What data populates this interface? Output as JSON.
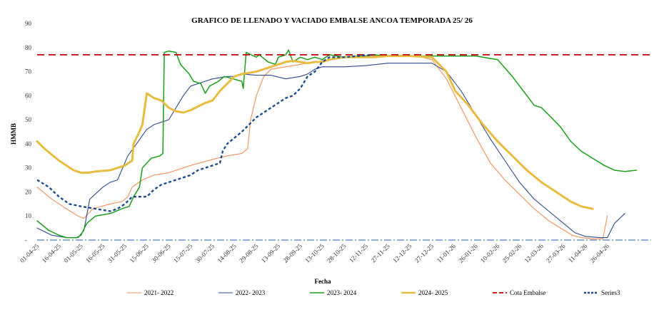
{
  "chart_data": {
    "type": "line",
    "title": "GRAFICO DE LLENADO Y VACIADO EMBALSE ANCOA TEMPORADA 25/ 26",
    "xlabel": "Fecha",
    "ylabel": "HMMB",
    "ylim": [
      0,
      90
    ],
    "yticks": [
      10,
      20,
      30,
      40,
      50,
      60,
      70,
      80,
      90
    ],
    "yzero_label": "-",
    "grid": false,
    "legend_position": "bottom",
    "x_categories": [
      "01-04-25",
      "16-04-25",
      "01-05-25",
      "16-05-25",
      "31-05-25",
      "15-06-25",
      "30-06-25",
      "15-07-25",
      "30-07-25",
      "14-08-25",
      "29-08-25",
      "13-09-25",
      "28-09-25",
      "13-10-25",
      "28-10-25",
      "12-11-25",
      "27-11-25",
      "12-12-25",
      "27-12-25",
      "11-01-26",
      "26-01-26",
      "10-02-26",
      "25-02-26",
      "12-03-26",
      "27-03-26",
      "11-04-26",
      "26-04-26"
    ],
    "x_day_offsets": [
      0,
      15,
      30,
      45,
      60,
      75,
      90,
      105,
      120,
      135,
      150,
      165,
      180,
      195,
      210,
      225,
      240,
      255,
      270,
      285,
      300,
      315,
      330,
      345,
      360,
      375,
      390
    ],
    "x_max_day": 420,
    "series": [
      {
        "name": "2021- 2022",
        "color": "#f0905a",
        "width": 1.1,
        "dash": "",
        "points": [
          [
            0,
            22
          ],
          [
            10,
            17
          ],
          [
            20,
            13
          ],
          [
            28,
            10
          ],
          [
            32,
            9
          ],
          [
            38,
            13
          ],
          [
            50,
            15
          ],
          [
            58,
            16
          ],
          [
            62,
            18
          ],
          [
            65,
            22
          ],
          [
            72,
            25
          ],
          [
            80,
            27
          ],
          [
            90,
            28
          ],
          [
            105,
            31
          ],
          [
            120,
            33.5
          ],
          [
            130,
            35
          ],
          [
            140,
            36
          ],
          [
            144,
            38
          ],
          [
            146,
            50
          ],
          [
            150,
            60
          ],
          [
            155,
            68
          ],
          [
            160,
            71
          ],
          [
            170,
            72
          ],
          [
            180,
            73
          ],
          [
            190,
            74
          ],
          [
            200,
            75
          ],
          [
            210,
            76
          ],
          [
            220,
            76
          ],
          [
            230,
            76.5
          ],
          [
            240,
            76.5
          ],
          [
            250,
            76.5
          ],
          [
            260,
            76.5
          ],
          [
            270,
            75
          ],
          [
            280,
            67
          ],
          [
            290,
            55
          ],
          [
            300,
            43
          ],
          [
            310,
            32
          ],
          [
            320,
            25
          ],
          [
            330,
            19
          ],
          [
            340,
            13
          ],
          [
            350,
            8
          ],
          [
            358,
            5
          ],
          [
            366,
            2
          ],
          [
            372,
            1
          ],
          [
            380,
            0.5
          ],
          [
            387,
            0.5
          ],
          [
            390,
            10
          ]
        ]
      },
      {
        "name": "2022- 2023",
        "color": "#2e4a8b",
        "width": 1.1,
        "dash": "",
        "points": [
          [
            0,
            5
          ],
          [
            10,
            2
          ],
          [
            20,
            1
          ],
          [
            28,
            1
          ],
          [
            32,
            4
          ],
          [
            36,
            17
          ],
          [
            45,
            22
          ],
          [
            50,
            24
          ],
          [
            55,
            25
          ],
          [
            62,
            35
          ],
          [
            68,
            40
          ],
          [
            75,
            46
          ],
          [
            80,
            48
          ],
          [
            90,
            50
          ],
          [
            100,
            60
          ],
          [
            105,
            64
          ],
          [
            115,
            66
          ],
          [
            120,
            67
          ],
          [
            130,
            68
          ],
          [
            135,
            68
          ],
          [
            140,
            69
          ],
          [
            150,
            68.5
          ],
          [
            160,
            68.5
          ],
          [
            170,
            67
          ],
          [
            180,
            68
          ],
          [
            185,
            69
          ],
          [
            190,
            71
          ],
          [
            195,
            72
          ],
          [
            210,
            72
          ],
          [
            225,
            72.5
          ],
          [
            240,
            73.5
          ],
          [
            255,
            73.5
          ],
          [
            270,
            73.5
          ],
          [
            280,
            70
          ],
          [
            290,
            62
          ],
          [
            300,
            52
          ],
          [
            310,
            42
          ],
          [
            320,
            33
          ],
          [
            330,
            24
          ],
          [
            340,
            17
          ],
          [
            350,
            12
          ],
          [
            360,
            7
          ],
          [
            368,
            3
          ],
          [
            375,
            1.5
          ],
          [
            385,
            1
          ],
          [
            390,
            1
          ],
          [
            395,
            7
          ],
          [
            402,
            11
          ]
        ]
      },
      {
        "name": "2023- 2024",
        "color": "#1a9e1a",
        "width": 1.5,
        "dash": "",
        "points": [
          [
            0,
            8
          ],
          [
            8,
            4
          ],
          [
            15,
            2
          ],
          [
            20,
            1
          ],
          [
            27,
            1
          ],
          [
            30,
            2
          ],
          [
            34,
            7
          ],
          [
            40,
            10
          ],
          [
            50,
            11
          ],
          [
            58,
            13
          ],
          [
            63,
            14
          ],
          [
            66,
            18
          ],
          [
            70,
            22
          ],
          [
            72,
            30
          ],
          [
            78,
            34
          ],
          [
            84,
            35
          ],
          [
            86,
            36
          ],
          [
            87,
            78
          ],
          [
            90,
            78.5
          ],
          [
            95,
            78
          ],
          [
            98,
            73
          ],
          [
            104,
            69
          ],
          [
            107,
            66
          ],
          [
            112,
            65
          ],
          [
            115,
            61
          ],
          [
            118,
            64
          ],
          [
            124,
            66
          ],
          [
            128,
            68
          ],
          [
            134,
            67
          ],
          [
            140,
            66
          ],
          [
            141,
            63
          ],
          [
            143,
            78
          ],
          [
            150,
            76
          ],
          [
            152,
            77
          ],
          [
            158,
            74
          ],
          [
            163,
            73
          ],
          [
            165,
            76
          ],
          [
            170,
            77
          ],
          [
            172,
            79
          ],
          [
            175,
            74
          ],
          [
            180,
            76
          ],
          [
            185,
            75
          ],
          [
            190,
            76
          ],
          [
            195,
            75
          ],
          [
            200,
            77
          ],
          [
            210,
            76
          ],
          [
            220,
            76.5
          ],
          [
            225,
            76.5
          ],
          [
            230,
            77
          ],
          [
            240,
            76.5
          ],
          [
            255,
            76.5
          ],
          [
            270,
            76.5
          ],
          [
            285,
            76.5
          ],
          [
            300,
            76.5
          ],
          [
            315,
            75
          ],
          [
            325,
            68
          ],
          [
            335,
            60
          ],
          [
            340,
            56
          ],
          [
            345,
            55
          ],
          [
            350,
            52
          ],
          [
            358,
            47
          ],
          [
            365,
            41
          ],
          [
            372,
            37
          ],
          [
            380,
            34
          ],
          [
            388,
            31
          ],
          [
            395,
            29
          ],
          [
            402,
            28.5
          ],
          [
            410,
            29
          ]
        ]
      },
      {
        "name": "2024- 2025",
        "color": "#e8bc40",
        "width": 3,
        "dash": "",
        "points": [
          [
            0,
            41
          ],
          [
            5,
            38
          ],
          [
            15,
            33
          ],
          [
            25,
            29
          ],
          [
            30,
            28
          ],
          [
            35,
            28
          ],
          [
            40,
            28.5
          ],
          [
            50,
            29
          ],
          [
            60,
            31
          ],
          [
            65,
            33
          ],
          [
            66,
            40
          ],
          [
            70,
            45
          ],
          [
            72,
            48
          ],
          [
            75,
            61
          ],
          [
            80,
            59
          ],
          [
            85,
            58
          ],
          [
            90,
            55
          ],
          [
            95,
            53.5
          ],
          [
            100,
            53
          ],
          [
            105,
            54
          ],
          [
            110,
            55.5
          ],
          [
            115,
            57
          ],
          [
            120,
            58
          ],
          [
            125,
            62
          ],
          [
            130,
            65
          ],
          [
            135,
            68
          ],
          [
            140,
            69
          ],
          [
            145,
            69.5
          ],
          [
            150,
            70
          ],
          [
            155,
            71
          ],
          [
            160,
            72
          ],
          [
            165,
            73
          ],
          [
            170,
            74
          ],
          [
            175,
            74.5
          ],
          [
            180,
            74
          ],
          [
            185,
            73.5
          ],
          [
            190,
            74
          ],
          [
            195,
            74
          ],
          [
            200,
            75
          ],
          [
            210,
            76
          ],
          [
            220,
            76
          ],
          [
            230,
            76
          ],
          [
            240,
            76.5
          ],
          [
            255,
            76.5
          ],
          [
            270,
            76
          ],
          [
            280,
            70
          ],
          [
            286,
            62
          ],
          [
            295,
            56
          ],
          [
            305,
            48
          ],
          [
            315,
            41
          ],
          [
            325,
            35
          ],
          [
            335,
            29
          ],
          [
            345,
            24
          ],
          [
            355,
            20
          ],
          [
            365,
            16
          ],
          [
            372,
            14
          ],
          [
            380,
            13
          ]
        ]
      },
      {
        "name": "Cota Embalse",
        "color": "#c00000",
        "width": 1.8,
        "dash": "10,6",
        "points": [
          [
            0,
            77
          ],
          [
            420,
            77
          ]
        ]
      },
      {
        "name": "Series3",
        "color": "#1f4e8f",
        "width": 2.4,
        "dash": "4,3",
        "points": [
          [
            0,
            25
          ],
          [
            8,
            22
          ],
          [
            15,
            18
          ],
          [
            22,
            15
          ],
          [
            30,
            14
          ],
          [
            40,
            13
          ],
          [
            50,
            12
          ],
          [
            55,
            13
          ],
          [
            60,
            15
          ],
          [
            65,
            18
          ],
          [
            70,
            18
          ],
          [
            75,
            18
          ],
          [
            80,
            21
          ],
          [
            85,
            23
          ],
          [
            90,
            24
          ],
          [
            100,
            26
          ],
          [
            105,
            27
          ],
          [
            110,
            29
          ],
          [
            115,
            30
          ],
          [
            120,
            31
          ],
          [
            125,
            32
          ],
          [
            127,
            37
          ],
          [
            130,
            40
          ],
          [
            140,
            45
          ],
          [
            145,
            48
          ],
          [
            150,
            51
          ],
          [
            155,
            53
          ],
          [
            160,
            55
          ],
          [
            165,
            57
          ],
          [
            170,
            59
          ],
          [
            175,
            60
          ],
          [
            180,
            63
          ],
          [
            185,
            68
          ],
          [
            190,
            70
          ],
          [
            195,
            74
          ],
          [
            200,
            76
          ],
          [
            210,
            76
          ],
          [
            220,
            76.5
          ],
          [
            230,
            77
          ]
        ]
      },
      {
        "name": "",
        "color": "#1f5fa0",
        "width": 1,
        "dash": "10,3,2,3",
        "points": [
          [
            0,
            0
          ],
          [
            420,
            0
          ]
        ]
      }
    ]
  }
}
